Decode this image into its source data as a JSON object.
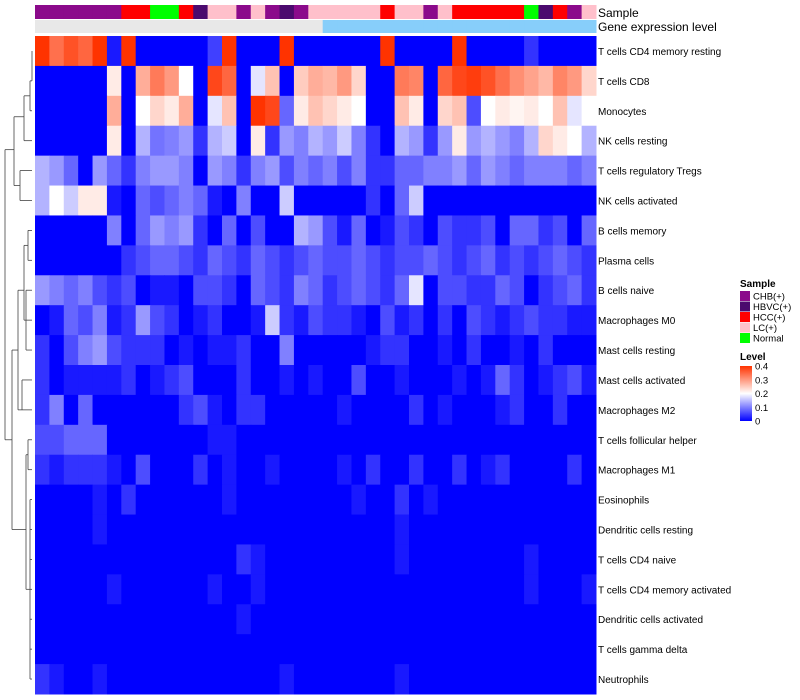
{
  "chart_data": {
    "type": "heatmap",
    "title": "",
    "annotation_tracks": [
      {
        "label": "Sample"
      },
      {
        "label": "Gene expression level"
      }
    ],
    "rows": [
      "T cells CD4 memory resting",
      "T cells CD8",
      "Monocytes",
      "NK cells resting",
      "T cells regulatory  Tregs",
      "NK cells activated",
      "B cells memory",
      "Plasma cells",
      "B cells naive",
      "Macrophages M0",
      "Mast cells resting",
      "Mast cells activated",
      "Macrophages M2",
      "T cells follicular helper",
      "Macrophages M1",
      "Eosinophils",
      "Dendritic cells resting",
      "T cells CD4 naive",
      "T cells CD4 memory activated",
      "Dendritic cells activated",
      "T cells gamma delta",
      "Neutrophils"
    ],
    "sample_groups": [
      "CHB(+)",
      "CHB(+)",
      "CHB(+)",
      "CHB(+)",
      "CHB(+)",
      "CHB(+)",
      "HCC(+)",
      "HCC(+)",
      "Normal",
      "Normal",
      "HCC(+)",
      "HBVC(+)",
      "LC(+)",
      "LC(+)",
      "CHB(+)",
      "LC(+)",
      "CHB(+)",
      "HBVC(+)",
      "CHB(+)",
      "LC(+)",
      "LC(+)",
      "LC(+)",
      "LC(+)",
      "LC(+)",
      "HCC(+)",
      "LC(+)",
      "LC(+)",
      "CHB(+)",
      "LC(+)",
      "HCC(+)",
      "HCC(+)",
      "HCC(+)",
      "HCC(+)",
      "HCC(+)",
      "Normal",
      "HBVC(+)",
      "HCC(+)",
      "CHB(+)",
      "LC(+)"
    ],
    "sample_colors": {
      "CHB(+)": "#8B0A8B",
      "HBVC(+)": "#4B0A6E",
      "HCC(+)": "#FF0000",
      "LC(+)": "#FFC0CB",
      "Normal": "#00FF00"
    },
    "gene_expression_level": [
      "Low",
      "Low",
      "Low",
      "Low",
      "Low",
      "Low",
      "Low",
      "Low",
      "Low",
      "Low",
      "Low",
      "Low",
      "Low",
      "Low",
      "Low",
      "Low",
      "Low",
      "Low",
      "Low",
      "Low",
      "High",
      "High",
      "High",
      "High",
      "High",
      "High",
      "High",
      "High",
      "High",
      "High",
      "High",
      "High",
      "High",
      "High",
      "High",
      "High",
      "High",
      "High",
      "High"
    ],
    "gene_expression_colors": {
      "Low": "#E8E8E8",
      "High": "#87CEFA"
    },
    "values": [
      [
        0.4,
        0.34,
        0.37,
        0.35,
        0.4,
        0.02,
        0.4,
        0.0,
        0.0,
        0.0,
        0.0,
        0.0,
        0.05,
        0.4,
        0.0,
        0.0,
        0.0,
        0.4,
        0.0,
        0.0,
        0.0,
        0.0,
        0.0,
        0.0,
        0.4,
        0.0,
        0.0,
        0.0,
        0.0,
        0.4,
        0.0,
        0.0,
        0.0,
        0.0,
        0.04,
        0.0,
        0.0,
        0.0,
        0.0
      ],
      [
        0.0,
        0.0,
        0.0,
        0.0,
        0.0,
        0.22,
        0.0,
        0.28,
        0.33,
        0.3,
        0.2,
        0.0,
        0.38,
        0.35,
        0.0,
        0.18,
        0.26,
        0.0,
        0.25,
        0.28,
        0.27,
        0.3,
        0.24,
        0.0,
        0.0,
        0.33,
        0.32,
        0.0,
        0.35,
        0.38,
        0.39,
        0.37,
        0.34,
        0.31,
        0.29,
        0.27,
        0.32,
        0.3,
        0.24
      ],
      [
        0.0,
        0.0,
        0.0,
        0.0,
        0.0,
        0.28,
        0.0,
        0.2,
        0.24,
        0.22,
        0.28,
        0.0,
        0.18,
        0.26,
        0.0,
        0.4,
        0.38,
        0.08,
        0.22,
        0.26,
        0.24,
        0.22,
        0.2,
        0.0,
        0.0,
        0.26,
        0.22,
        0.0,
        0.24,
        0.26,
        0.06,
        0.2,
        0.22,
        0.21,
        0.22,
        0.2,
        0.26,
        0.18,
        0.2
      ],
      [
        0.0,
        0.0,
        0.0,
        0.0,
        0.0,
        0.22,
        0.0,
        0.14,
        0.09,
        0.1,
        0.12,
        0.04,
        0.14,
        0.16,
        0.0,
        0.22,
        0.04,
        0.12,
        0.1,
        0.14,
        0.12,
        0.16,
        0.1,
        0.04,
        0.0,
        0.14,
        0.12,
        0.04,
        0.12,
        0.22,
        0.12,
        0.14,
        0.12,
        0.1,
        0.14,
        0.24,
        0.22,
        0.2,
        0.14
      ],
      [
        0.14,
        0.12,
        0.08,
        0.0,
        0.12,
        0.08,
        0.04,
        0.1,
        0.12,
        0.12,
        0.1,
        0.0,
        0.12,
        0.1,
        0.04,
        0.1,
        0.12,
        0.06,
        0.1,
        0.08,
        0.1,
        0.06,
        0.1,
        0.04,
        0.04,
        0.08,
        0.08,
        0.1,
        0.1,
        0.12,
        0.08,
        0.12,
        0.1,
        0.08,
        0.1,
        0.1,
        0.1,
        0.08,
        0.1
      ],
      [
        0.14,
        0.2,
        0.16,
        0.22,
        0.22,
        0.02,
        0.0,
        0.08,
        0.06,
        0.08,
        0.1,
        0.08,
        0.02,
        0.0,
        0.1,
        0.0,
        0.0,
        0.16,
        0.0,
        0.0,
        0.0,
        0.0,
        0.0,
        0.04,
        0.0,
        0.08,
        0.16,
        0.0,
        0.0,
        0.0,
        0.0,
        0.0,
        0.0,
        0.0,
        0.0,
        0.0,
        0.0,
        0.0,
        0.0
      ],
      [
        0.0,
        0.0,
        0.0,
        0.0,
        0.0,
        0.1,
        0.0,
        0.08,
        0.12,
        0.1,
        0.12,
        0.04,
        0.0,
        0.08,
        0.0,
        0.06,
        0.0,
        0.0,
        0.14,
        0.12,
        0.06,
        0.02,
        0.08,
        0.0,
        0.02,
        0.06,
        0.04,
        0.0,
        0.06,
        0.04,
        0.04,
        0.06,
        0.0,
        0.08,
        0.08,
        0.04,
        0.06,
        0.0,
        0.08
      ],
      [
        0.0,
        0.0,
        0.0,
        0.0,
        0.0,
        0.0,
        0.04,
        0.06,
        0.08,
        0.08,
        0.06,
        0.04,
        0.08,
        0.06,
        0.04,
        0.08,
        0.06,
        0.04,
        0.06,
        0.08,
        0.06,
        0.06,
        0.08,
        0.06,
        0.04,
        0.06,
        0.06,
        0.08,
        0.06,
        0.04,
        0.06,
        0.08,
        0.04,
        0.06,
        0.04,
        0.06,
        0.08,
        0.06,
        0.04
      ],
      [
        0.12,
        0.1,
        0.08,
        0.1,
        0.06,
        0.04,
        0.06,
        0.0,
        0.02,
        0.02,
        0.0,
        0.06,
        0.06,
        0.04,
        0.0,
        0.08,
        0.06,
        0.04,
        0.1,
        0.08,
        0.04,
        0.06,
        0.08,
        0.06,
        0.04,
        0.08,
        0.18,
        0.0,
        0.06,
        0.06,
        0.04,
        0.04,
        0.08,
        0.06,
        0.0,
        0.04,
        0.06,
        0.08,
        0.04
      ],
      [
        0.0,
        0.02,
        0.08,
        0.06,
        0.1,
        0.02,
        0.04,
        0.12,
        0.06,
        0.04,
        0.0,
        0.02,
        0.04,
        0.0,
        0.0,
        0.02,
        0.16,
        0.04,
        0.02,
        0.06,
        0.04,
        0.04,
        0.02,
        0.0,
        0.06,
        0.02,
        0.04,
        0.0,
        0.04,
        0.0,
        0.06,
        0.04,
        0.02,
        0.04,
        0.06,
        0.04,
        0.04,
        0.02,
        0.02
      ],
      [
        0.04,
        0.0,
        0.06,
        0.1,
        0.12,
        0.06,
        0.04,
        0.04,
        0.04,
        0.0,
        0.02,
        0.0,
        0.02,
        0.02,
        0.04,
        0.0,
        0.0,
        0.1,
        0.0,
        0.0,
        0.0,
        0.0,
        0.0,
        0.02,
        0.04,
        0.04,
        0.0,
        0.0,
        0.02,
        0.0,
        0.04,
        0.0,
        0.0,
        0.02,
        0.0,
        0.04,
        0.0,
        0.0,
        0.0
      ],
      [
        0.04,
        0.0,
        0.02,
        0.02,
        0.02,
        0.02,
        0.04,
        0.0,
        0.02,
        0.04,
        0.06,
        0.0,
        0.0,
        0.0,
        0.04,
        0.0,
        0.0,
        0.02,
        0.0,
        0.02,
        0.0,
        0.0,
        0.06,
        0.0,
        0.0,
        0.02,
        0.0,
        0.0,
        0.0,
        0.02,
        0.0,
        0.02,
        0.08,
        0.04,
        0.0,
        0.02,
        0.04,
        0.06,
        0.02
      ],
      [
        0.04,
        0.1,
        0.0,
        0.08,
        0.0,
        0.0,
        0.0,
        0.0,
        0.0,
        0.0,
        0.04,
        0.06,
        0.02,
        0.0,
        0.04,
        0.04,
        0.0,
        0.0,
        0.0,
        0.0,
        0.0,
        0.02,
        0.0,
        0.0,
        0.0,
        0.0,
        0.04,
        0.0,
        0.02,
        0.0,
        0.0,
        0.0,
        0.02,
        0.04,
        0.0,
        0.0,
        0.04,
        0.0,
        0.0
      ],
      [
        0.06,
        0.06,
        0.08,
        0.08,
        0.08,
        0.0,
        0.0,
        0.0,
        0.0,
        0.0,
        0.0,
        0.0,
        0.02,
        0.02,
        0.0,
        0.0,
        0.0,
        0.0,
        0.0,
        0.0,
        0.0,
        0.0,
        0.0,
        0.0,
        0.0,
        0.0,
        0.0,
        0.0,
        0.0,
        0.0,
        0.0,
        0.0,
        0.0,
        0.0,
        0.0,
        0.0,
        0.0,
        0.0,
        0.0
      ],
      [
        0.04,
        0.02,
        0.04,
        0.04,
        0.04,
        0.02,
        0.0,
        0.06,
        0.0,
        0.0,
        0.0,
        0.04,
        0.0,
        0.02,
        0.0,
        0.0,
        0.02,
        0.0,
        0.0,
        0.0,
        0.0,
        0.02,
        0.0,
        0.04,
        0.0,
        0.0,
        0.04,
        0.0,
        0.0,
        0.04,
        0.0,
        0.02,
        0.04,
        0.0,
        0.0,
        0.0,
        0.0,
        0.04,
        0.0
      ],
      [
        0.0,
        0.0,
        0.0,
        0.0,
        0.02,
        0.0,
        0.04,
        0.0,
        0.0,
        0.0,
        0.0,
        0.0,
        0.0,
        0.02,
        0.0,
        0.0,
        0.0,
        0.0,
        0.0,
        0.0,
        0.0,
        0.0,
        0.02,
        0.0,
        0.0,
        0.04,
        0.0,
        0.02,
        0.0,
        0.0,
        0.0,
        0.0,
        0.0,
        0.0,
        0.0,
        0.0,
        0.0,
        0.0,
        0.0
      ],
      [
        0.0,
        0.0,
        0.0,
        0.0,
        0.02,
        0.0,
        0.0,
        0.0,
        0.0,
        0.0,
        0.0,
        0.0,
        0.0,
        0.0,
        0.0,
        0.0,
        0.0,
        0.0,
        0.0,
        0.0,
        0.0,
        0.0,
        0.0,
        0.0,
        0.0,
        0.02,
        0.0,
        0.0,
        0.0,
        0.0,
        0.0,
        0.0,
        0.0,
        0.0,
        0.0,
        0.0,
        0.0,
        0.0,
        0.0
      ],
      [
        0.0,
        0.0,
        0.0,
        0.0,
        0.0,
        0.0,
        0.0,
        0.0,
        0.0,
        0.0,
        0.0,
        0.0,
        0.0,
        0.0,
        0.04,
        0.02,
        0.0,
        0.0,
        0.0,
        0.0,
        0.0,
        0.0,
        0.0,
        0.0,
        0.0,
        0.02,
        0.0,
        0.0,
        0.0,
        0.0,
        0.0,
        0.0,
        0.0,
        0.0,
        0.02,
        0.0,
        0.0,
        0.0,
        0.0
      ],
      [
        0.0,
        0.0,
        0.0,
        0.0,
        0.0,
        0.02,
        0.0,
        0.0,
        0.0,
        0.0,
        0.0,
        0.0,
        0.02,
        0.0,
        0.0,
        0.02,
        0.0,
        0.0,
        0.0,
        0.0,
        0.0,
        0.0,
        0.0,
        0.0,
        0.0,
        0.0,
        0.0,
        0.0,
        0.0,
        0.0,
        0.0,
        0.0,
        0.0,
        0.0,
        0.02,
        0.0,
        0.0,
        0.0,
        0.02
      ],
      [
        0.0,
        0.0,
        0.0,
        0.0,
        0.0,
        0.0,
        0.0,
        0.0,
        0.0,
        0.0,
        0.0,
        0.0,
        0.0,
        0.0,
        0.02,
        0.0,
        0.0,
        0.0,
        0.0,
        0.0,
        0.0,
        0.0,
        0.0,
        0.0,
        0.0,
        0.0,
        0.0,
        0.0,
        0.0,
        0.0,
        0.0,
        0.0,
        0.0,
        0.0,
        0.0,
        0.0,
        0.0,
        0.0,
        0.0
      ],
      [
        0.0,
        0.0,
        0.0,
        0.0,
        0.0,
        0.0,
        0.0,
        0.0,
        0.0,
        0.0,
        0.0,
        0.0,
        0.0,
        0.0,
        0.0,
        0.0,
        0.0,
        0.0,
        0.0,
        0.0,
        0.0,
        0.0,
        0.0,
        0.0,
        0.0,
        0.0,
        0.0,
        0.0,
        0.0,
        0.0,
        0.0,
        0.0,
        0.0,
        0.0,
        0.0,
        0.0,
        0.0,
        0.0,
        0.0
      ],
      [
        0.04,
        0.02,
        0.0,
        0.0,
        0.02,
        0.0,
        0.0,
        0.0,
        0.0,
        0.0,
        0.0,
        0.0,
        0.0,
        0.0,
        0.0,
        0.0,
        0.0,
        0.02,
        0.0,
        0.0,
        0.0,
        0.0,
        0.0,
        0.0,
        0.0,
        0.02,
        0.0,
        0.0,
        0.0,
        0.0,
        0.0,
        0.0,
        0.0,
        0.0,
        0.0,
        0.0,
        0.0,
        0.0,
        0.0
      ]
    ],
    "color_scale": {
      "min": 0,
      "max": 0.4,
      "colors": [
        "#0000FF",
        "#FFFFFF",
        "#FF3300"
      ]
    },
    "legend": {
      "sample": {
        "title": "Sample",
        "entries": [
          "CHB(+)",
          "HBVC(+)",
          "HCC(+)",
          "LC(+)",
          "Normal"
        ]
      },
      "level": {
        "title": "Level",
        "ticks": [
          "0.4",
          "0.3",
          "0.2",
          "0.1",
          "0"
        ],
        "tick_values": [
          0.4,
          0.3,
          0.2,
          0.1,
          0
        ]
      },
      "position": "right"
    }
  }
}
